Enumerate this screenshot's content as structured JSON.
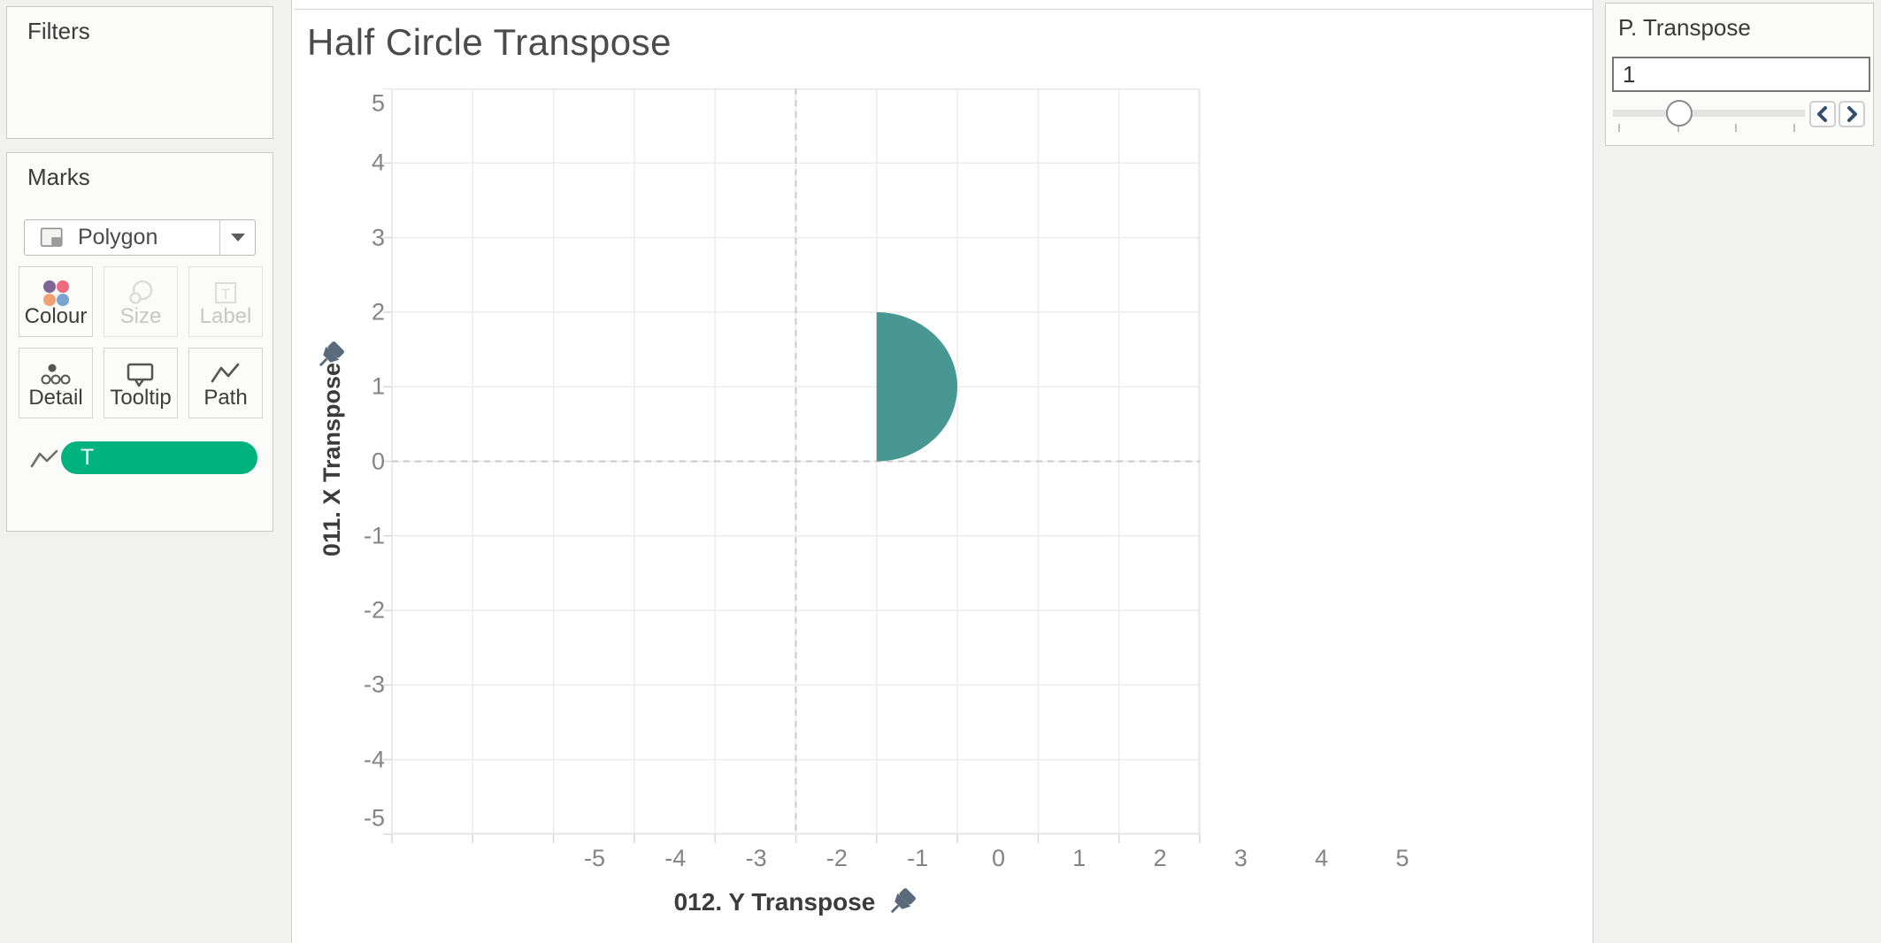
{
  "sidebar": {
    "filters": {
      "title": "Filters"
    },
    "marks": {
      "title": "Marks",
      "mark_type": "Polygon",
      "buttons": [
        {
          "label": "Colour",
          "disabled": false
        },
        {
          "label": "Size",
          "disabled": true
        },
        {
          "label": "Label",
          "disabled": true
        },
        {
          "label": "Detail",
          "disabled": false
        },
        {
          "label": "Tooltip",
          "disabled": false
        },
        {
          "label": "Path",
          "disabled": false
        }
      ],
      "colour_icon_dots": [
        "#7d6696",
        "#f0697c",
        "#efa173",
        "#7ba3d0"
      ],
      "pill": {
        "label": "T",
        "color": "#00b27d"
      }
    }
  },
  "sheet": {
    "title": "Half Circle Transpose"
  },
  "param_panel": {
    "title": "P. Transpose",
    "value": "1",
    "slider": {
      "tick_count": 4,
      "thumb_position": 0.34
    },
    "chevron_color": "#32506e"
  },
  "icon_colors": {
    "pin": "#5a6a7b",
    "active_icon": "#555555",
    "disabled_icon": "#dcdcdc"
  },
  "chart_data": {
    "type": "area",
    "title": "Half Circle Transpose",
    "xlabel": "012. Y Transpose",
    "ylabel": "011. X Transpose",
    "xlim": [
      -5,
      5
    ],
    "ylim": [
      -5,
      5
    ],
    "x_ticks": [
      -5,
      -4,
      -3,
      -2,
      -1,
      0,
      1,
      2,
      3,
      4,
      5
    ],
    "y_ticks": [
      5,
      4,
      3,
      2,
      1,
      0,
      -1,
      -2,
      -3,
      -4,
      -5
    ],
    "grid": true,
    "zero_lines": {
      "x": 0,
      "y": 0,
      "style": "dashed"
    },
    "series": [
      {
        "name": "half-circle polygon",
        "shape": "half-circle",
        "center": [
          1,
          1
        ],
        "radius": 1,
        "flat_edge_x": 1,
        "bulge_direction": "right",
        "y_span": [
          0,
          2
        ],
        "x_span": [
          1,
          2
        ],
        "fill": "#499792"
      }
    ],
    "legend": "none"
  }
}
